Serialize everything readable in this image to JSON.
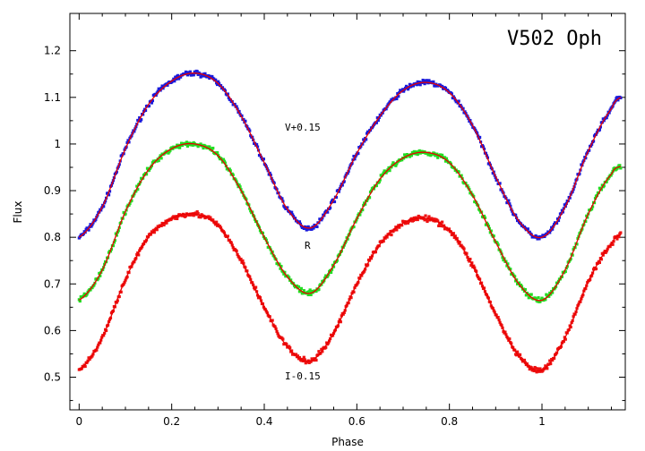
{
  "chart_data": {
    "type": "scatter",
    "title": "V502 Oph",
    "xlabel": "Phase",
    "ylabel": "Flux",
    "xlim": [
      -0.02,
      1.18
    ],
    "ylim": [
      0.43,
      1.28
    ],
    "grid": false,
    "legend": "none",
    "x_ticks": [
      0,
      0.2,
      0.4,
      0.6,
      0.8,
      1
    ],
    "x_tick_labels": [
      "0",
      "0.2",
      "0.4",
      "0.6",
      "0.8",
      "1"
    ],
    "y_ticks": [
      0.5,
      0.6,
      0.7,
      0.8,
      0.9,
      1,
      1.1,
      1.2
    ],
    "y_tick_labels": [
      "0.5",
      "0.6",
      "0.7",
      "0.8",
      "0.9",
      "1",
      "1.1",
      "1.2"
    ],
    "model_color": "#e80000",
    "series": [
      {
        "label": "V+0.15",
        "color": "#1a1adb",
        "x": [
          0.0,
          0.05,
          0.1,
          0.15,
          0.2,
          0.25,
          0.3,
          0.35,
          0.4,
          0.45,
          0.5,
          0.55,
          0.6,
          0.65,
          0.7,
          0.75,
          0.8,
          0.85,
          0.9,
          0.95,
          1.0,
          1.05,
          1.1,
          1.15,
          1.17
        ],
        "y": [
          0.8,
          0.865,
          0.99,
          1.085,
          1.135,
          1.152,
          1.13,
          1.06,
          0.96,
          0.86,
          0.82,
          0.88,
          0.98,
          1.06,
          1.115,
          1.132,
          1.11,
          1.04,
          0.93,
          0.835,
          0.8,
          0.865,
          0.985,
          1.075,
          1.1
        ]
      },
      {
        "label": "R",
        "color": "#22dd22",
        "x": [
          0.0,
          0.05,
          0.1,
          0.15,
          0.2,
          0.25,
          0.3,
          0.35,
          0.4,
          0.45,
          0.5,
          0.55,
          0.6,
          0.65,
          0.7,
          0.75,
          0.8,
          0.85,
          0.9,
          0.95,
          1.0,
          1.05,
          1.1,
          1.15,
          1.17
        ],
        "y": [
          0.665,
          0.73,
          0.855,
          0.945,
          0.99,
          1.0,
          0.975,
          0.9,
          0.8,
          0.715,
          0.68,
          0.74,
          0.84,
          0.925,
          0.97,
          0.982,
          0.96,
          0.89,
          0.79,
          0.7,
          0.665,
          0.73,
          0.85,
          0.935,
          0.952
        ]
      },
      {
        "label": "I-0.15",
        "color": "#ee1111",
        "x": [
          0.0,
          0.05,
          0.1,
          0.15,
          0.2,
          0.25,
          0.3,
          0.35,
          0.4,
          0.45,
          0.5,
          0.55,
          0.6,
          0.65,
          0.7,
          0.75,
          0.8,
          0.85,
          0.9,
          0.95,
          1.0,
          1.05,
          1.1,
          1.15,
          1.17
        ],
        "y": [
          0.515,
          0.585,
          0.71,
          0.8,
          0.84,
          0.85,
          0.825,
          0.75,
          0.65,
          0.565,
          0.535,
          0.595,
          0.7,
          0.785,
          0.83,
          0.84,
          0.815,
          0.74,
          0.635,
          0.545,
          0.515,
          0.585,
          0.705,
          0.785,
          0.805
        ]
      }
    ]
  }
}
